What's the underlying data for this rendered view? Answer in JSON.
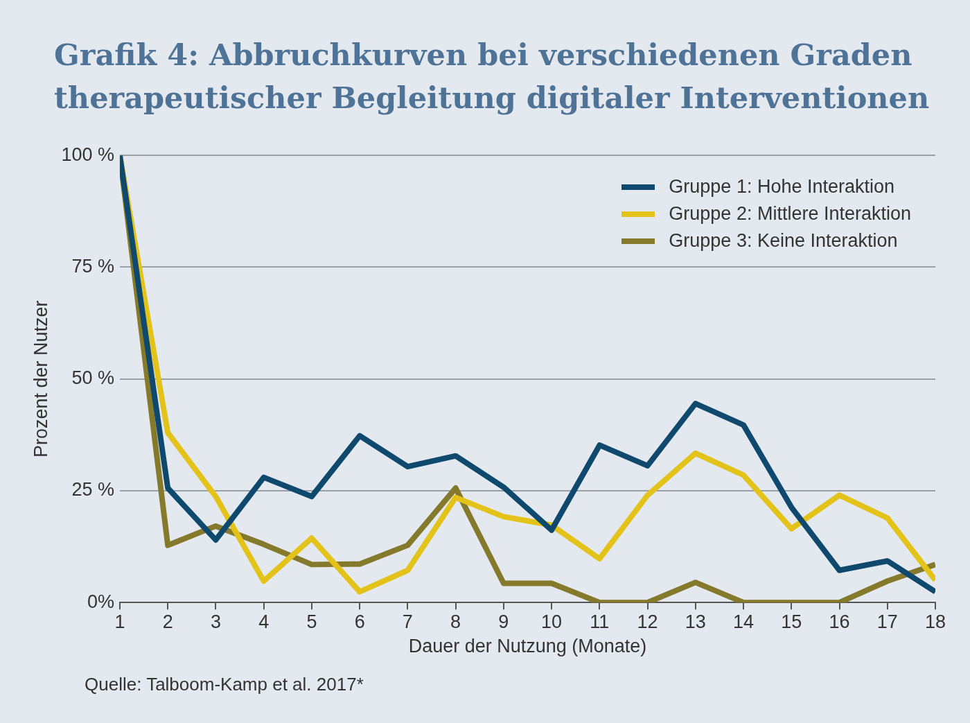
{
  "chart_data": {
    "type": "line",
    "title": "Grafik 4: Abbruchkurven bei verschiedenen Graden therapeutischer Begleitung digitaler Interventionen",
    "xlabel": "Dauer der Nutzung (Monate)",
    "ylabel": "Prozent der Nutzer",
    "x": [
      1,
      2,
      3,
      4,
      5,
      6,
      7,
      8,
      9,
      10,
      11,
      12,
      13,
      14,
      15,
      16,
      17,
      18
    ],
    "series": [
      {
        "name": "Gruppe 1: Hohe Interaktion",
        "color": "#0f4a6e",
        "values": [
          100,
          25.6,
          14,
          28,
          23.7,
          37.3,
          30.4,
          32.8,
          25.8,
          16.2,
          35.2,
          30.6,
          44.5,
          39.7,
          21.3,
          7.2,
          9.3,
          2.4
        ]
      },
      {
        "name": "Gruppe 2: Mittlere Interaktion",
        "color": "#e3c31a",
        "values": [
          100,
          38,
          23.7,
          4.8,
          14.4,
          2.4,
          7.2,
          23.5,
          19.2,
          17.3,
          9.8,
          24,
          33.4,
          28.5,
          16.5,
          24,
          18.9,
          5
        ]
      },
      {
        "name": "Gruppe 3: Keine Interaktion",
        "color": "#857a2c",
        "values": [
          100,
          12.8,
          17.1,
          13,
          8.5,
          8.6,
          12.8,
          25.6,
          4.3,
          4.3,
          0,
          0,
          4.5,
          0,
          0,
          0,
          4.8,
          8.5
        ]
      }
    ],
    "xlim": [
      1,
      18
    ],
    "xticks": [
      1,
      2,
      3,
      4,
      5,
      6,
      7,
      8,
      9,
      10,
      11,
      12,
      13,
      14,
      15,
      16,
      17,
      18
    ],
    "ylim": [
      0,
      100
    ],
    "yticks": [
      {
        "value": 0,
        "label": "0%"
      },
      {
        "value": 25,
        "label": "25 %"
      },
      {
        "value": 50,
        "label": "50 %"
      },
      {
        "value": 75,
        "label": "75 %"
      },
      {
        "value": 100,
        "label": "100 %"
      }
    ],
    "grid": "y",
    "legend": "top right",
    "marker": "none",
    "line_style": "solid",
    "annotations": [
      "Quelle: Talboom-Kamp et al. 2017*"
    ]
  }
}
